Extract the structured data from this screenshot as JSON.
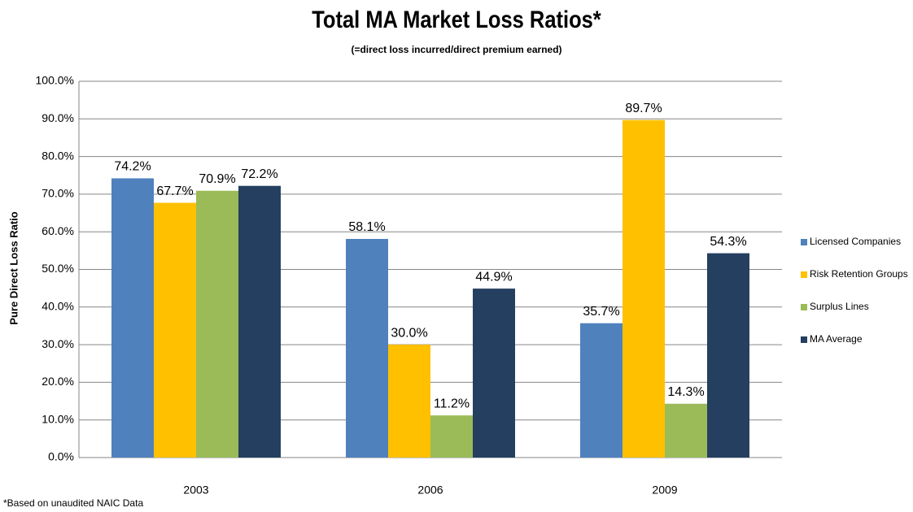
{
  "chart_data": {
    "type": "bar",
    "title": "Total MA Market Loss Ratios*",
    "subtitle": "(=direct loss incurred/direct premium earned)",
    "y_label": "Pure Direct Loss Ratio",
    "footnote": "*Based on unaudited NAIC Data",
    "categories": [
      "2003",
      "2006",
      "2009"
    ],
    "series": [
      {
        "name": "Licensed Companies",
        "color": "#4f81bd",
        "values": [
          74.2,
          58.1,
          35.7
        ],
        "value_labels": [
          "74.2%",
          "58.1%",
          "35.7%"
        ]
      },
      {
        "name": "Risk Retention Groups",
        "color": "#ffc000",
        "values": [
          67.7,
          30.0,
          89.7
        ],
        "value_labels": [
          "67.7%",
          "30.0%",
          "89.7%"
        ]
      },
      {
        "name": "Surplus Lines",
        "color": "#9bbb59",
        "values": [
          70.9,
          11.2,
          14.3
        ],
        "value_labels": [
          "70.9%",
          "11.2%",
          "14.3%"
        ]
      },
      {
        "name": "MA Average",
        "color": "#243f60",
        "values": [
          72.2,
          44.9,
          54.3
        ],
        "value_labels": [
          "72.2%",
          "44.9%",
          "54.3%"
        ]
      }
    ],
    "ylim": [
      0,
      100
    ],
    "yticks": [
      {
        "value": 0,
        "label": "0.0%"
      },
      {
        "value": 10,
        "label": "10.0%"
      },
      {
        "value": 20,
        "label": "20.0%"
      },
      {
        "value": 30,
        "label": "30.0%"
      },
      {
        "value": 40,
        "label": "40.0%"
      },
      {
        "value": 50,
        "label": "50.0%"
      },
      {
        "value": 60,
        "label": "60.0%"
      },
      {
        "value": 70,
        "label": "70.0%"
      },
      {
        "value": 80,
        "label": "80.0%"
      },
      {
        "value": 90,
        "label": "90.0%"
      },
      {
        "value": 100,
        "label": "100.0%"
      }
    ],
    "grid": true,
    "legend": "right"
  }
}
